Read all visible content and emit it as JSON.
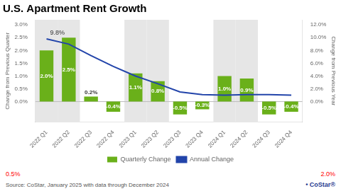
{
  "chart_data": {
    "type": "bar",
    "title": "U.S. Apartment Rent Growth",
    "categories": [
      "2022 Q1",
      "2022 Q2",
      "2022 Q3",
      "2022 Q4",
      "2023 Q1",
      "2023 Q2",
      "2023 Q3",
      "2023 Q4",
      "2024 Q1",
      "2024 Q2",
      "2024 Q3",
      "2024 Q4"
    ],
    "series": [
      {
        "name": "Quarterly Change",
        "type": "bar",
        "color": "#6ab01a",
        "values": [
          2.0,
          2.5,
          0.2,
          -0.4,
          1.1,
          0.8,
          -0.5,
          -0.3,
          1.0,
          0.9,
          -0.5,
          -0.4
        ],
        "value_labels": [
          "2.0%",
          "2.5%",
          "0.2%",
          "-0.4%",
          "1.1%",
          "0.8%",
          "-0.5%",
          "-0.3%",
          "1.0%",
          "0.9%",
          "-0.5%",
          "-0.4%"
        ]
      },
      {
        "name": "Annual Change",
        "type": "line",
        "color": "#2244aa",
        "axis": "y2",
        "values": [
          9.8,
          9.0,
          7.2,
          5.5,
          4.0,
          2.8,
          1.5,
          1.1,
          1.0,
          1.1,
          1.1,
          1.0
        ]
      }
    ],
    "ylabel": "Change from Previous Quarter",
    "y2label": "Change from Previous Year",
    "ylim": [
      -0.8,
      3.2
    ],
    "yticks": [
      {
        "value": 0.0,
        "label": "0.0%"
      },
      {
        "value": 0.5,
        "label": "0.5%"
      },
      {
        "value": 1.0,
        "label": "1.0%"
      },
      {
        "value": 1.5,
        "label": "1.5%"
      },
      {
        "value": 2.0,
        "label": "2.0%"
      },
      {
        "value": 2.5,
        "label": "2.5%"
      },
      {
        "value": 3.0,
        "label": "3.0%"
      }
    ],
    "y2lim": [
      -3.2,
      12.8
    ],
    "y2ticks": [
      {
        "value": 0.0,
        "label": "0.0%"
      },
      {
        "value": 2.0,
        "label": "2.0%"
      },
      {
        "value": 4.0,
        "label": "4.0%"
      },
      {
        "value": 6.0,
        "label": "6.0%"
      },
      {
        "value": 8.0,
        "label": "8.0%"
      },
      {
        "value": 10.0,
        "label": "10.0%"
      },
      {
        "value": 12.0,
        "label": "12.0%"
      }
    ],
    "data_labels": true,
    "annotations": [
      {
        "text": "9.8%",
        "category": "2022 Q1",
        "value": 9.8,
        "axis": "y2"
      }
    ],
    "shaded": [
      "2022 Q1",
      "2022 Q2",
      "2023 Q1",
      "2023 Q2",
      "2024 Q1",
      "2024 Q2"
    ],
    "shade_color": "#e6e6e6",
    "notes": [
      {
        "text": "0.5%",
        "color": "red"
      },
      {
        "text": "2.0%",
        "color": "red"
      }
    ],
    "source": "Source: CoStar, January 2025 with data through December 2024",
    "logo": "• CoStar®",
    "grid": false,
    "legend": "bottom"
  }
}
